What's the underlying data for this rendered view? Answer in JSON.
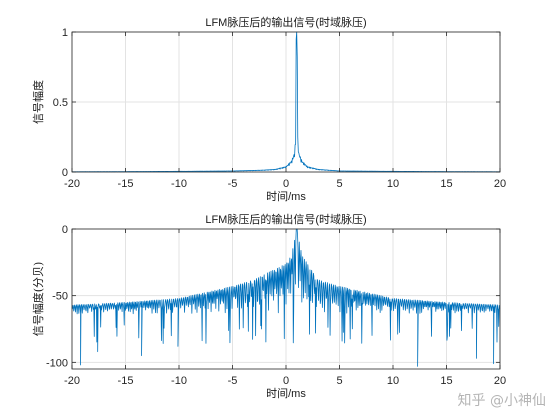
{
  "chart_data": [
    {
      "type": "line",
      "title": "LFM脉压后的输出信号(时域脉压)",
      "xlabel": "时间/ms",
      "ylabel": "信号幅度",
      "xlim": [
        -20,
        20
      ],
      "ylim": [
        0,
        1
      ],
      "xticks": [
        -20,
        -15,
        -10,
        -5,
        0,
        5,
        10,
        15,
        20
      ],
      "xtick_labels": [
        "-20",
        "-15",
        "-10",
        "-5",
        "0",
        "5",
        "10",
        "15",
        "20"
      ],
      "yticks": [
        0,
        0.5,
        1
      ],
      "ytick_labels": [
        "0",
        "0.5",
        "1"
      ],
      "grid": true,
      "series": [
        {
          "color": "#0072BD",
          "peak_x": 1.0,
          "peak_y": 1.0,
          "x": [
            -20,
            -15,
            -10,
            -5,
            -3,
            -2,
            -1,
            -0.5,
            0,
            0.5,
            0.8,
            0.9,
            1.0,
            1.1,
            1.2,
            1.5,
            2,
            3,
            5,
            10,
            15,
            20
          ],
          "y": [
            0.002,
            0.003,
            0.005,
            0.008,
            0.012,
            0.015,
            0.02,
            0.03,
            0.04,
            0.08,
            0.14,
            0.25,
            1.0,
            0.25,
            0.14,
            0.08,
            0.04,
            0.02,
            0.008,
            0.005,
            0.003,
            0.002
          ]
        }
      ]
    },
    {
      "type": "line",
      "title": "LFM脉压后的输出信号(时域脉压)",
      "xlabel": "时间/ms",
      "ylabel": "信号幅度(分贝)",
      "xlim": [
        -20,
        20
      ],
      "ylim": [
        -105,
        0
      ],
      "xticks": [
        -20,
        -15,
        -10,
        -5,
        0,
        5,
        10,
        15,
        20
      ],
      "xtick_labels": [
        "-20",
        "-15",
        "-10",
        "-5",
        "0",
        "5",
        "10",
        "15",
        "20"
      ],
      "yticks": [
        -100,
        -50,
        0
      ],
      "ytick_labels": [
        "-100",
        "-50",
        "0"
      ],
      "grid": true,
      "series": [
        {
          "color": "#0072BD",
          "peak_x": 1.0,
          "peak_y": 0,
          "envelope_x": [
            -20,
            -15,
            -10,
            -5,
            -3,
            -1,
            0,
            0.5,
            1,
            1.5,
            2,
            3,
            5,
            10,
            15,
            20
          ],
          "envelope_y": [
            -57,
            -55,
            -52,
            -43,
            -38,
            -30,
            -26,
            -20,
            0,
            -20,
            -26,
            -38,
            -43,
            -52,
            -55,
            -57
          ],
          "floor_y": -64,
          "deep_nulls_x": [
            -19.2,
            -17.6,
            -13.5,
            -10.1,
            12.3,
            17.8,
            19.4
          ],
          "deep_nulls_y": [
            -102,
            -92,
            -95,
            -88,
            -103,
            -97,
            -101
          ]
        }
      ]
    }
  ],
  "watermark": "知乎 @小神仙"
}
